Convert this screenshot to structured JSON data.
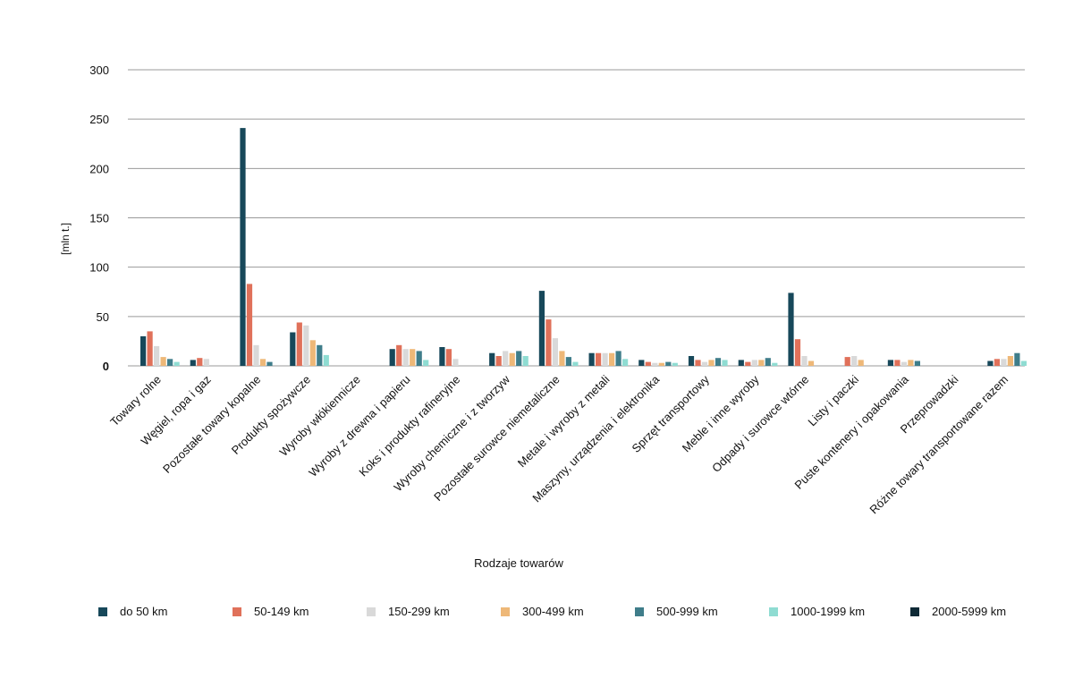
{
  "chart_data": {
    "type": "bar",
    "title": "",
    "xlabel": "Rodzaje towarów",
    "ylabel": "[mln t.]",
    "ylim": [
      0,
      300
    ],
    "yticks": [
      "0",
      "50",
      "100",
      "150",
      "200",
      "250",
      "300"
    ],
    "grid": true,
    "legend_position": "bottom",
    "categories": [
      "Towary rolne",
      "Węgiel, ropa i gaz",
      "Pozostałe towary kopalne",
      "Produkty spożywcze",
      "Wyroby włókiennicze",
      "Wyroby z drewna i papieru",
      "Koks i produkty rafineryjne",
      "Wyroby chemiczne i z tworzyw",
      "Pozostałe surowce niemetaliczne",
      "Metale i wyroby z metali",
      "Maszyny, urządzenia i elektronika",
      "Sprzęt transportowy",
      "Meble i inne wyroby",
      "Odpady i surowce wtórne",
      "Listy i paczki",
      "Puste kontenery i opakowania",
      "Przeprowadzki",
      "Różne towary transportowane razem"
    ],
    "series": [
      {
        "name": "do 50 km",
        "color": "#17485a",
        "values": [
          30,
          6,
          241,
          34,
          0,
          17,
          19,
          13,
          76,
          13,
          6,
          10,
          6,
          74,
          0,
          6,
          0,
          5
        ]
      },
      {
        "name": "50-149 km",
        "color": "#e0715a",
        "values": [
          35,
          8,
          83,
          44,
          0,
          21,
          17,
          10,
          47,
          13,
          4,
          6,
          4,
          27,
          9,
          6,
          0,
          7
        ]
      },
      {
        "name": "150-299 km",
        "color": "#d9d9d9",
        "values": [
          20,
          7,
          21,
          41,
          0,
          17,
          7,
          15,
          28,
          13,
          3,
          4,
          6,
          10,
          10,
          4,
          0,
          7
        ]
      },
      {
        "name": "300-499 km",
        "color": "#eeb878",
        "values": [
          9,
          0,
          7,
          26,
          0,
          17,
          0,
          13,
          15,
          13,
          3,
          6,
          6,
          5,
          6,
          6,
          0,
          10
        ]
      },
      {
        "name": "500-999 km",
        "color": "#3f7d8a",
        "values": [
          7,
          0,
          4,
          21,
          0,
          15,
          0,
          15,
          9,
          15,
          4,
          8,
          8,
          0,
          0,
          5,
          0,
          13
        ]
      },
      {
        "name": "1000-1999 km",
        "color": "#8fdcd2",
        "values": [
          4,
          0,
          0,
          11,
          0,
          6,
          0,
          10,
          4,
          7,
          3,
          6,
          3,
          0,
          0,
          0,
          0,
          5
        ]
      },
      {
        "name": "2000-5999 km",
        "color": "#0f2a36",
        "values": [
          0,
          0,
          0,
          0,
          0,
          0,
          0,
          0,
          0,
          0,
          0,
          0,
          0,
          0,
          0,
          0,
          0,
          0
        ]
      }
    ]
  }
}
